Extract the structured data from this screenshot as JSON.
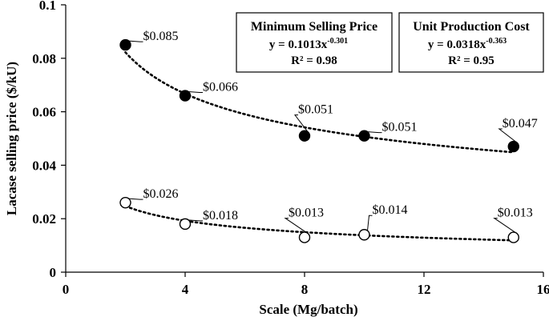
{
  "chart_data": {
    "type": "scatter",
    "xlabel": "Scale (Mg/batch)",
    "ylabel": "Lacase selling price ($/kU)",
    "xlim": [
      0,
      16
    ],
    "ylim": [
      0,
      0.1
    ],
    "x_ticks": [
      "0",
      "4",
      "8",
      "12",
      "16"
    ],
    "y_ticks": [
      "0",
      "0.02",
      "0.04",
      "0.06",
      "0.08",
      "0.1"
    ],
    "grid": false,
    "series": [
      {
        "name": "Minimum Selling Price",
        "marker": "filled-circle",
        "x": [
          2,
          4,
          8,
          10,
          15
        ],
        "y": [
          0.085,
          0.066,
          0.051,
          0.051,
          0.047
        ],
        "labels": [
          "$0.085",
          "$0.066",
          "$0.051",
          "$0.051",
          "$0.047"
        ],
        "trendline": {
          "type": "power",
          "coef": 0.1013,
          "exp": -0.301,
          "equation_base": "y = 0.1013x",
          "equation_exp": "-0.301",
          "r2": "R² = 0.98"
        }
      },
      {
        "name": "Unit Production Cost",
        "marker": "open-circle",
        "x": [
          2,
          4,
          8,
          10,
          15
        ],
        "y": [
          0.026,
          0.018,
          0.013,
          0.014,
          0.013
        ],
        "labels": [
          "$0.026",
          "$0.018",
          "$0.013",
          "$0.014",
          "$0.013"
        ],
        "trendline": {
          "type": "power",
          "coef": 0.0318,
          "exp": -0.363,
          "equation_base": "y = 0.0318x",
          "equation_exp": "-0.363",
          "r2": "R² = 0.95"
        }
      }
    ]
  }
}
